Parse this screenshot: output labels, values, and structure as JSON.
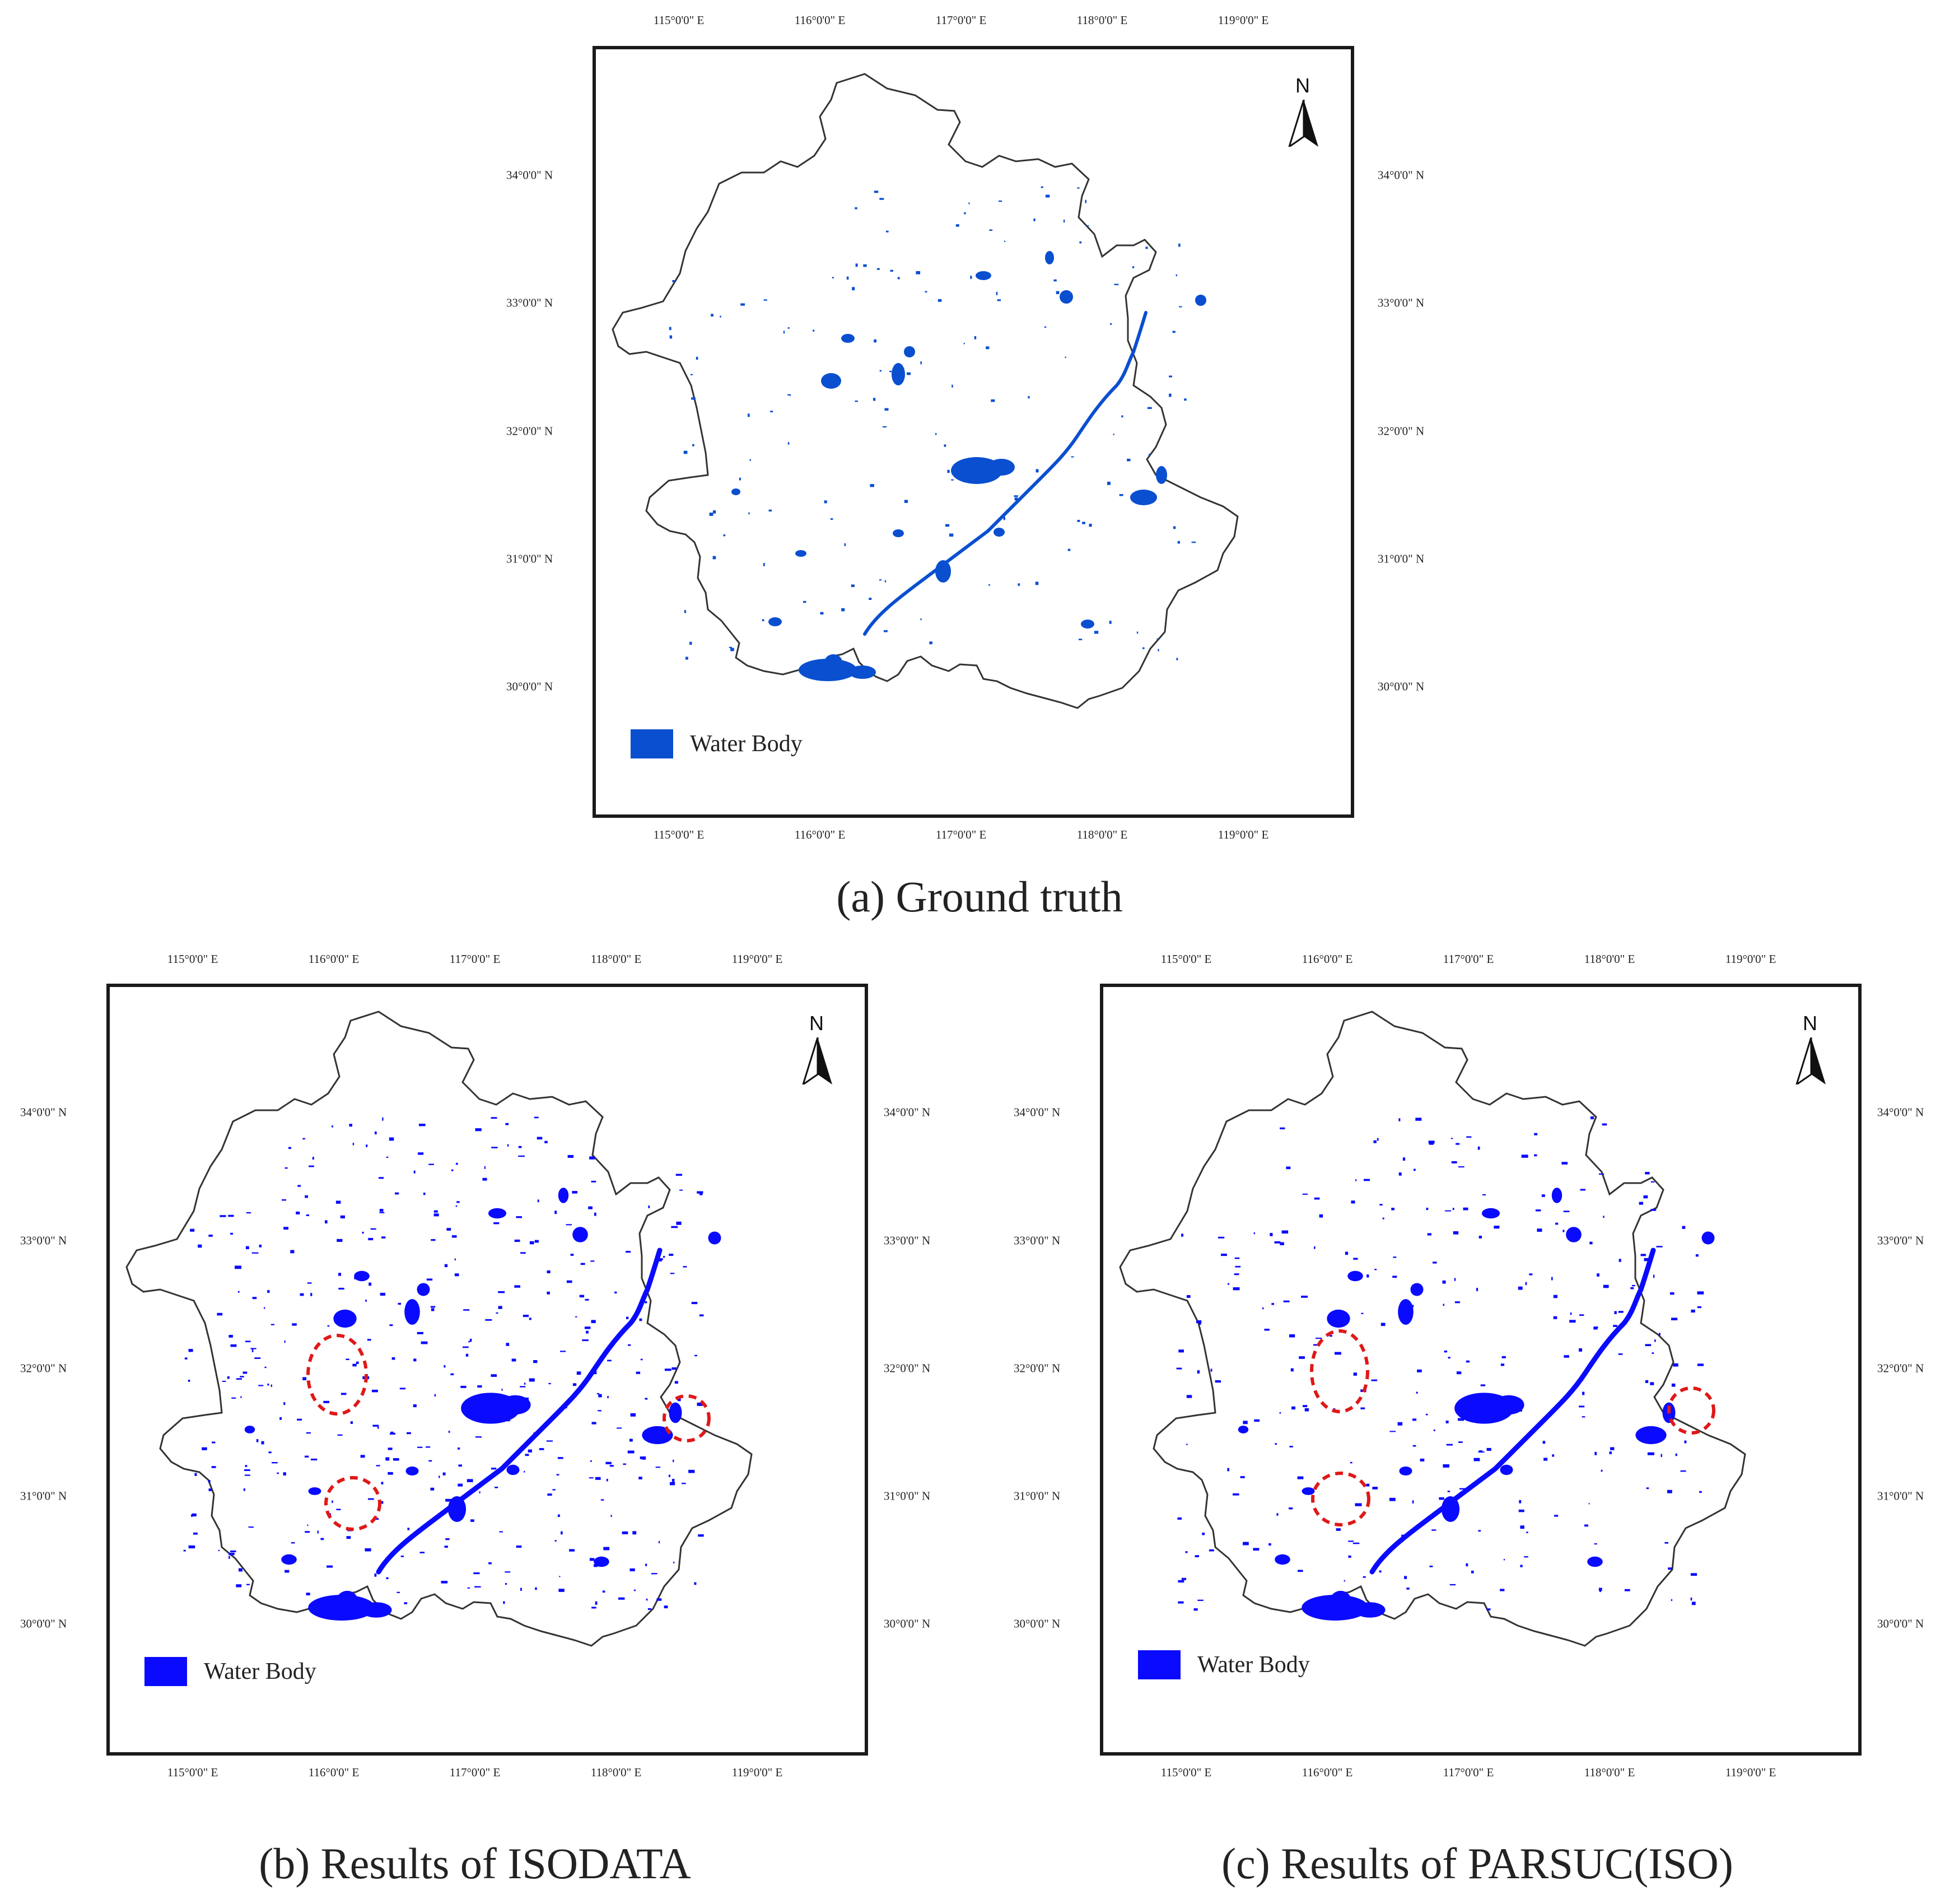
{
  "colors": {
    "water_truth": "#0a4fd0",
    "water_result": "#0a0aff",
    "outline": "#333333",
    "highlight_circle": "#e01818"
  },
  "panels": [
    {
      "id": "a",
      "caption": "(a)  Ground truth",
      "top_ticks": [
        "115°0'0\" E",
        "116°0'0\" E",
        "117°0'0\" E",
        "118°0'0\" E",
        "119°0'0\" E"
      ],
      "bottom_ticks": [
        "115°0'0\" E",
        "116°0'0\" E",
        "117°0'0\" E",
        "118°0'0\" E",
        "119°0'0\" E"
      ],
      "left_ticks": [
        "34°0'0\" N",
        "33°0'0\" N",
        "32°0'0\" N",
        "31°0'0\" N",
        "30°0'0\" N"
      ],
      "right_ticks": [
        "34°0'0\" N",
        "33°0'0\" N",
        "32°0'0\" N",
        "31°0'0\" N",
        "30°0'0\" N"
      ],
      "north_label": "N",
      "legend_label": "Water Body",
      "water_color_key": "water_truth",
      "highlights": 0
    },
    {
      "id": "b",
      "caption": "(b) Results of ISODATA",
      "top_ticks": [
        "115°0'0\" E",
        "116°0'0\" E",
        "117°0'0\" E",
        "118°0'0\" E",
        "119°0'0\" E"
      ],
      "bottom_ticks": [
        "115°0'0\" E",
        "116°0'0\" E",
        "117°0'0\" E",
        "118°0'0\" E",
        "119°0'0\" E"
      ],
      "left_ticks": [
        "34°0'0\" N",
        "33°0'0\" N",
        "32°0'0\" N",
        "31°0'0\" N",
        "30°0'0\" N"
      ],
      "right_ticks": [
        "34°0'0\" N",
        "33°0'0\" N",
        "32°0'0\" N",
        "31°0'0\" N",
        "30°0'0\" N"
      ],
      "north_label": "N",
      "legend_label": "Water Body",
      "water_color_key": "water_result",
      "highlights": 3
    },
    {
      "id": "c",
      "caption": "(c) Results of PARSUC(ISO)",
      "top_ticks": [
        "115°0'0\" E",
        "116°0'0\" E",
        "117°0'0\" E",
        "118°0'0\" E",
        "119°0'0\" E"
      ],
      "bottom_ticks": [
        "115°0'0\" E",
        "116°0'0\" E",
        "117°0'0\" E",
        "118°0'0\" E",
        "119°0'0\" E"
      ],
      "left_ticks": [
        "34°0'0\" N",
        "33°0'0\" N",
        "32°0'0\" N",
        "31°0'0\" N",
        "30°0'0\" N"
      ],
      "right_ticks": [
        "34°0'0\" N",
        "33°0'0\" N",
        "32°0'0\" N",
        "31°0'0\" N",
        "30°0'0\" N"
      ],
      "north_label": "N",
      "legend_label": "Water Body",
      "water_color_key": "water_result",
      "highlights": 3
    }
  ]
}
